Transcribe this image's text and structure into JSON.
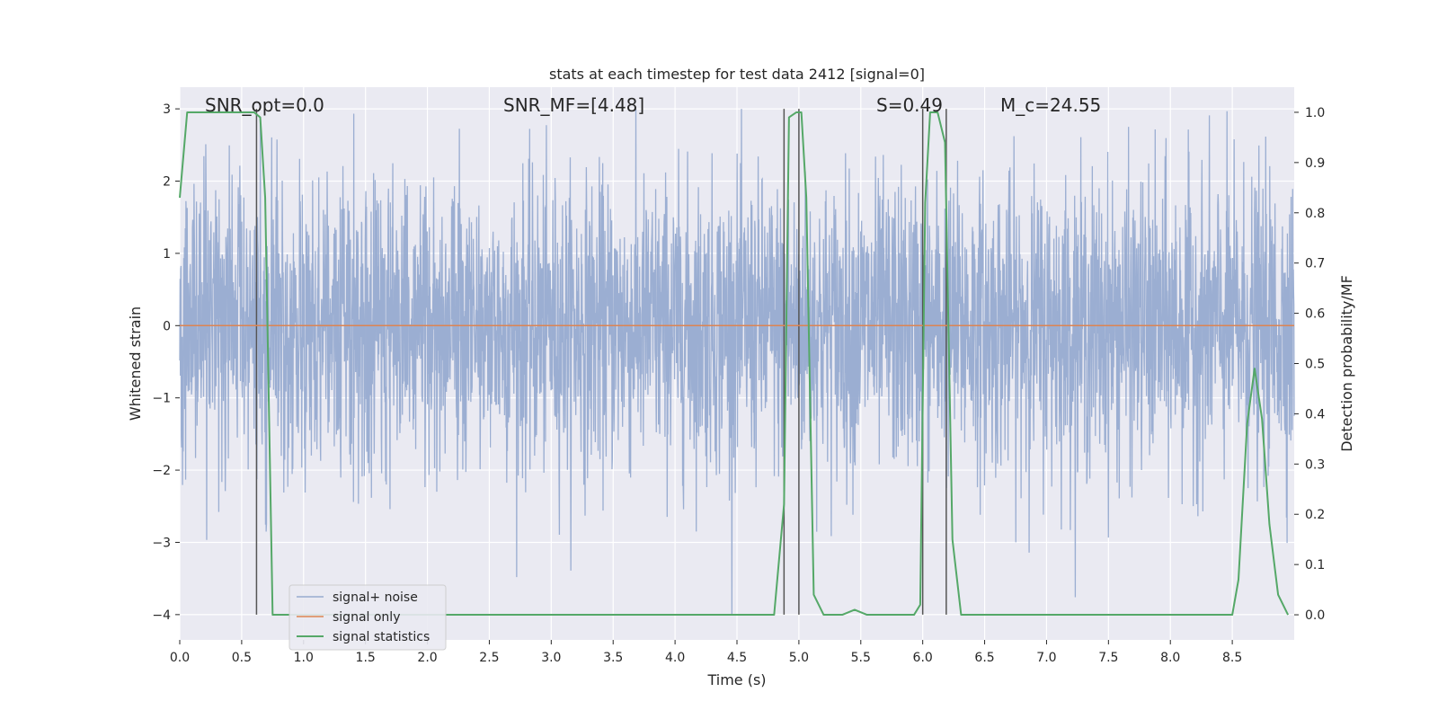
{
  "chart_data": {
    "type": "line",
    "title": "stats at each timestep for test data 2412 [signal=0]",
    "xlabel": "Time (s)",
    "ylabel_left": "Whitened strain",
    "ylabel_right": "Detection probability/MF",
    "xlim": [
      0.0,
      9.0
    ],
    "ylim_left": [
      -4.35,
      3.3
    ],
    "ylim_right": [
      -0.05,
      1.05
    ],
    "x_ticks": [
      "0.0",
      "0.5",
      "1.0",
      "1.5",
      "2.0",
      "2.5",
      "3.0",
      "3.5",
      "4.0",
      "4.5",
      "5.0",
      "5.5",
      "6.0",
      "6.5",
      "7.0",
      "7.5",
      "8.0",
      "8.5"
    ],
    "y_left_ticks": [
      "3",
      "2",
      "1",
      "0",
      "−1",
      "−2",
      "−3",
      "−4"
    ],
    "y_right_ticks": [
      "1.0",
      "0.9",
      "0.8",
      "0.7",
      "0.6",
      "0.5",
      "0.4",
      "0.3",
      "0.2",
      "0.1",
      "0.0"
    ],
    "grid": true,
    "legend_position": "lower-left",
    "annotations": [
      {
        "text": "SNR_opt=0.0"
      },
      {
        "text": "SNR_MF=[4.48]"
      },
      {
        "text": "S=0.49"
      },
      {
        "text": "M_c=24.55"
      }
    ],
    "vertical_markers_s": [
      0.62,
      4.88,
      5.0,
      6.0,
      6.19
    ],
    "series": [
      {
        "name": "signal+ noise",
        "color": "#97abd0",
        "axis": "left",
        "description_values": "whitened strain noise samples, mostly within -2.5 to 2.5, occasional peaks to +3 and -4",
        "envelope_x": [
          0.0,
          9.0
        ],
        "typical_amplitude": 1.0
      },
      {
        "name": "signal only",
        "color": "#dd8452",
        "axis": "left",
        "x": [
          0.0,
          9.0
        ],
        "y": [
          0.0,
          0.0
        ]
      },
      {
        "name": "signal statistics",
        "color": "#55a868",
        "axis": "right",
        "x": [
          0.0,
          0.06,
          0.12,
          0.2,
          0.3,
          0.4,
          0.5,
          0.6,
          0.65,
          0.69,
          0.75,
          0.8,
          1.5,
          2.5,
          3.5,
          4.5,
          4.8,
          4.88,
          4.92,
          4.98,
          5.02,
          5.06,
          5.12,
          5.2,
          5.3,
          5.35,
          5.45,
          5.55,
          5.7,
          5.85,
          5.93,
          5.98,
          6.02,
          6.06,
          6.12,
          6.18,
          6.24,
          6.31,
          6.4,
          7.0,
          7.5,
          8.0,
          8.2,
          8.4,
          8.5,
          8.55,
          8.62,
          8.68,
          8.74,
          8.8,
          8.87,
          8.95
        ],
        "y": [
          0.83,
          1.0,
          1.0,
          1.0,
          1.0,
          1.0,
          1.0,
          1.0,
          0.99,
          0.83,
          0.0,
          0.0,
          0.0,
          0.0,
          0.0,
          0.0,
          0.0,
          0.22,
          0.99,
          1.0,
          1.0,
          0.83,
          0.04,
          0.0,
          0.0,
          0.0,
          0.01,
          0.0,
          0.0,
          0.0,
          0.0,
          0.02,
          0.82,
          1.0,
          1.0,
          0.94,
          0.15,
          0.0,
          0.0,
          0.0,
          0.0,
          0.0,
          0.0,
          0.0,
          0.0,
          0.07,
          0.38,
          0.49,
          0.39,
          0.18,
          0.04,
          0.0
        ]
      }
    ]
  }
}
